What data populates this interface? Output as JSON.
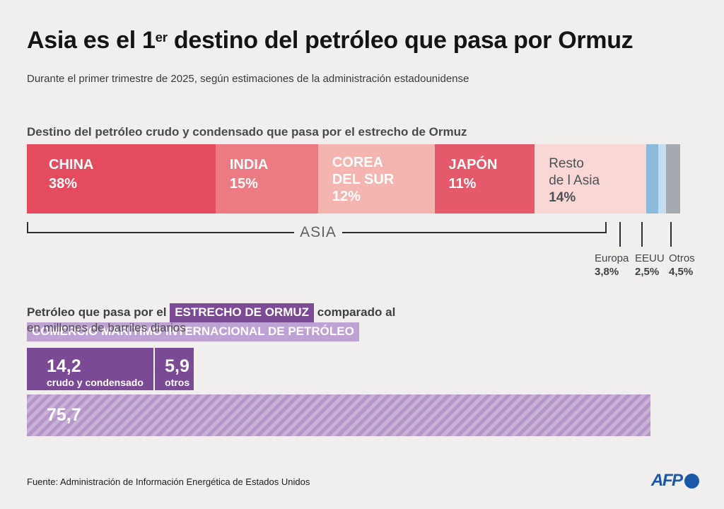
{
  "page": {
    "background": "#f0efed"
  },
  "header": {
    "title_prefix": "Asia es el 1",
    "title_sup": "er",
    "title_suffix": " destino del petróleo que pasa por Ormuz",
    "subtitle": "Durante el primer trimestre de 2025, según estimaciones de la administración estadounidense"
  },
  "section1": {
    "heading": "Destino del petróleo crudo y condensado que pasa por el estrecho de Ormuz",
    "group_label": "ASIA"
  },
  "section2": {
    "heading_prefix": "Petróleo que pasa por el",
    "badge_ormuz": "ESTRECHO DE ORMUZ",
    "badge_ormuz_color": "#7d4a97",
    "heading_middle": "comparado al",
    "badge_comercio": "COMERCIO MARÍTIMO INTERNACIONAL DE PETRÓLEO",
    "badge_comercio_color": "#bfa2d4",
    "unit_line": "en millones de barriles diarios"
  },
  "footer": {
    "source": "Fuente: Administración de Información Energética de Estados Unidos",
    "logo_text": "AFP",
    "logo_color": "#1c58a8"
  },
  "chart_data": [
    {
      "type": "bar",
      "subtype": "stacked-horizontal",
      "title": "Destino del petróleo crudo y condensado que pasa por el estrecho de Ormuz",
      "unit": "%",
      "legend_position": "inside-segments",
      "group_bracket": {
        "label": "ASIA",
        "covers": [
          "CHINA",
          "INDIA",
          "COREA DEL SUR",
          "JAPÓN",
          "Resto de l Asia"
        ]
      },
      "segments": [
        {
          "label": "CHINA",
          "value": 38,
          "value_label": "38%",
          "color": "#e44b5f",
          "text_color": "#ffffff",
          "group": "ASIA"
        },
        {
          "label": "INDIA",
          "value": 15,
          "value_label": "15%",
          "color": "#ec7a82",
          "text_color": "#ffffff",
          "group": "ASIA"
        },
        {
          "label": "COREA DEL SUR",
          "label_line1": "COREA",
          "label_line2": "DEL SUR",
          "value": 12,
          "value_label": "12%",
          "color": "#f4b5b1",
          "text_color": "#ffffff",
          "group": "ASIA"
        },
        {
          "label": "JAPÓN",
          "value": 11,
          "value_label": "11%",
          "color": "#e55a6a",
          "text_color": "#ffffff",
          "group": "ASIA"
        },
        {
          "label": "Resto de l Asia",
          "label_line1": "Resto",
          "label_line2": "de l Asia",
          "value": 14,
          "value_label": "14%",
          "color": "#f8d7d4",
          "text_color": "#4c5157",
          "group": "ASIA"
        },
        {
          "label": "Europa",
          "value": 3.8,
          "value_label": "3,8%",
          "color": "#8bbbdb",
          "label_position": "below"
        },
        {
          "label": "EEUU",
          "value": 2.5,
          "value_label": "2,5%",
          "color": "#c2ddf2",
          "label_position": "below"
        },
        {
          "label": "Otros",
          "value": 4.5,
          "value_label": "4,5%",
          "color": "#a5aab0",
          "label_position": "below"
        }
      ]
    },
    {
      "type": "bar",
      "subtype": "comparison-horizontal",
      "title": "Petróleo que pasa por el ESTRECHO DE ORMUZ comparado al COMERCIO MARÍTIMO INTERNACIONAL DE PETRÓLEO",
      "unit": "millones de barriles diarios",
      "rows": [
        {
          "name": "ESTRECHO DE ORMUZ",
          "color": "#7b4a94",
          "segments": [
            {
              "label": "crudo y condensado",
              "value": 14.2,
              "value_label": "14,2"
            },
            {
              "label": "otros",
              "value": 5.9,
              "value_label": "5,9"
            }
          ]
        },
        {
          "name": "COMERCIO MARÍTIMO INTERNACIONAL DE PETRÓLEO",
          "value": 75.7,
          "value_label": "75,7",
          "color": "#b696c8",
          "hatch_color": "#c7b2d6",
          "style": "diagonal-hatch"
        }
      ]
    }
  ]
}
